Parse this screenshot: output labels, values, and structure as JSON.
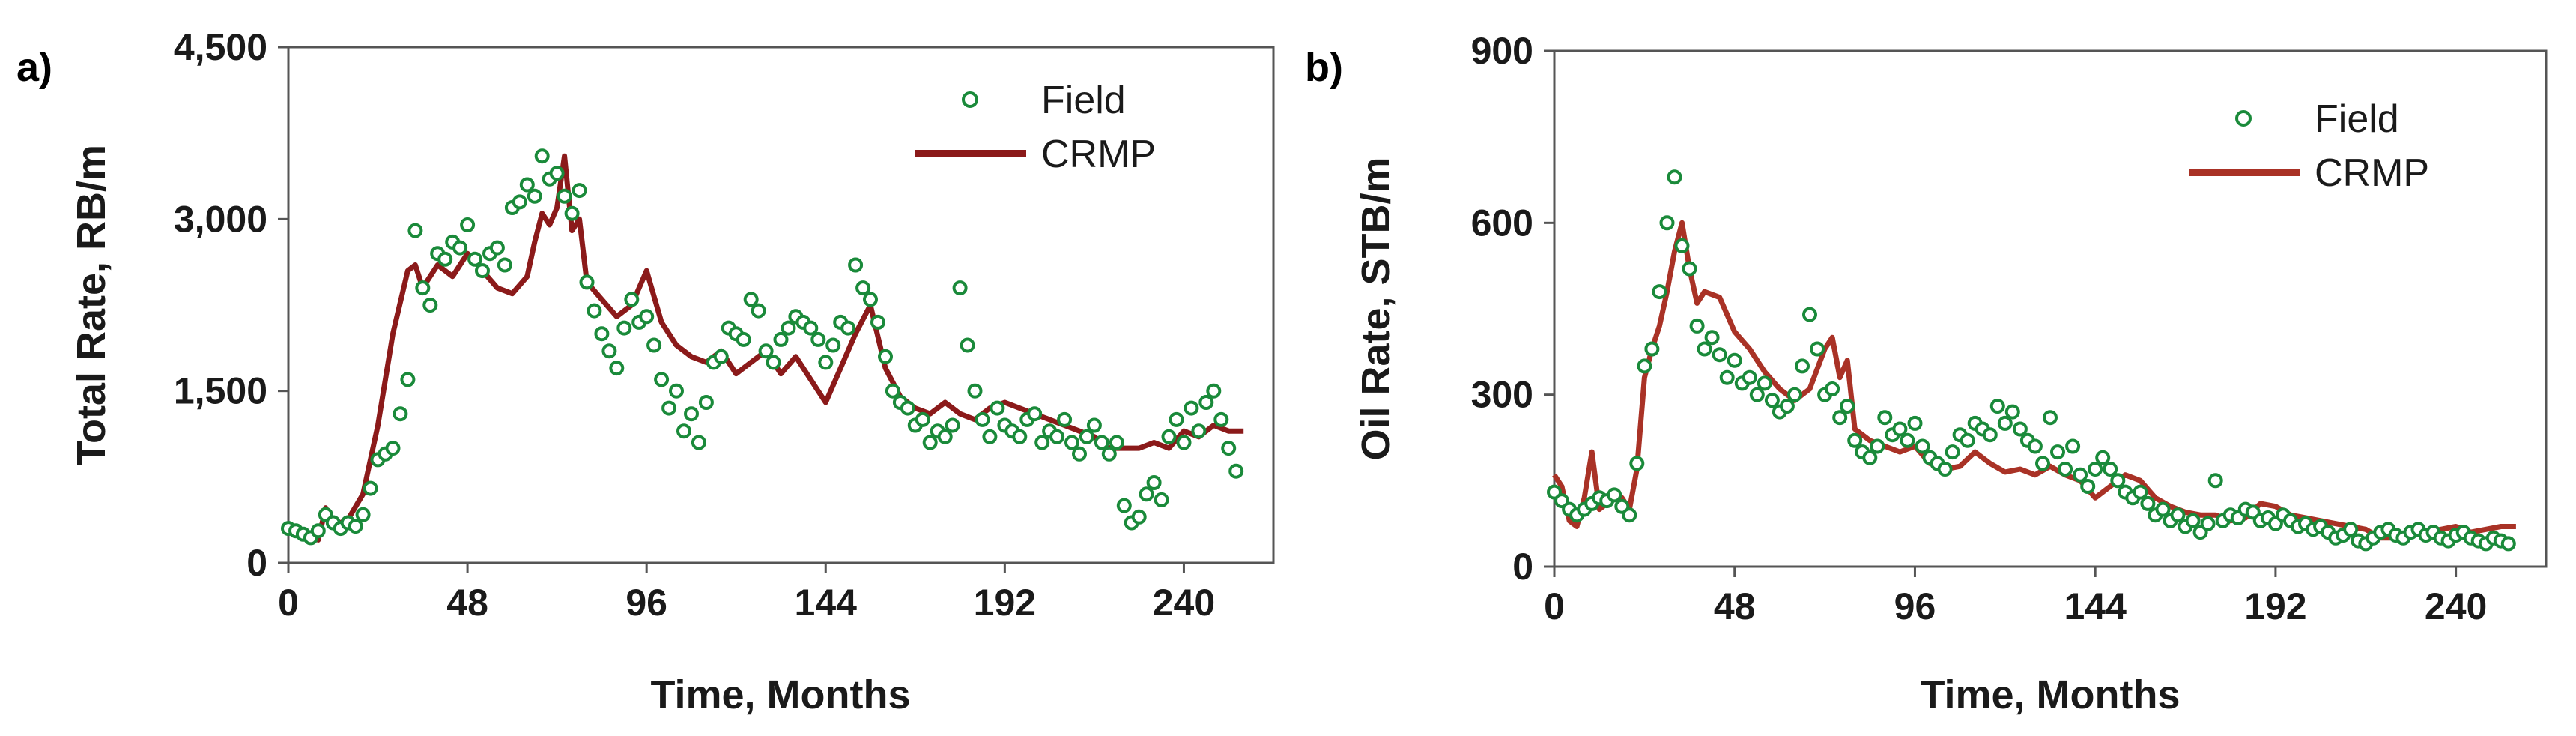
{
  "figure": {
    "description_note": ""
  },
  "chart_data": [
    {
      "panel_label": "a)",
      "type": "scatter+line",
      "xlabel": "Time, Months",
      "ylabel": "Total Rate, RB/m",
      "xlim": [
        0,
        264
      ],
      "ylim": [
        0,
        4500
      ],
      "xticks": [
        0,
        48,
        96,
        144,
        192,
        240
      ],
      "xtick_labels": [
        "0",
        "48",
        "96",
        "144",
        "192",
        "240"
      ],
      "yticks": [
        0,
        1500,
        3000,
        4500
      ],
      "ytick_labels": [
        "0",
        "1,500",
        "3,000",
        "4,500"
      ],
      "legend": {
        "position": "top-right",
        "entries": [
          {
            "label": "Field",
            "marker": "circle"
          },
          {
            "label": "CRMP",
            "marker": "line"
          }
        ]
      },
      "series": [
        {
          "name": "CRMP",
          "kind": "line",
          "color": "#8b1a1a",
          "x": [
            0,
            4,
            8,
            10,
            12,
            16,
            20,
            24,
            28,
            32,
            34,
            36,
            40,
            44,
            48,
            52,
            56,
            60,
            64,
            66,
            68,
            70,
            72,
            74,
            76,
            78,
            80,
            84,
            88,
            92,
            96,
            100,
            104,
            108,
            112,
            116,
            120,
            124,
            128,
            132,
            136,
            140,
            144,
            148,
            152,
            156,
            160,
            164,
            168,
            172,
            176,
            180,
            184,
            188,
            192,
            196,
            200,
            204,
            208,
            212,
            216,
            220,
            224,
            228,
            232,
            236,
            240,
            244,
            248,
            252,
            256
          ],
          "y": [
            300,
            250,
            200,
            480,
            320,
            380,
            600,
            1200,
            2000,
            2550,
            2600,
            2400,
            2600,
            2500,
            2700,
            2550,
            2400,
            2350,
            2500,
            2800,
            3050,
            2950,
            3100,
            3550,
            2900,
            3000,
            2450,
            2300,
            2150,
            2250,
            2550,
            2100,
            1900,
            1800,
            1750,
            1850,
            1650,
            1750,
            1850,
            1650,
            1800,
            1600,
            1400,
            1700,
            2000,
            2250,
            1700,
            1450,
            1350,
            1300,
            1400,
            1300,
            1250,
            1350,
            1400,
            1350,
            1300,
            1250,
            1200,
            1150,
            1100,
            1000,
            1000,
            1000,
            1050,
            1000,
            1150,
            1100,
            1200,
            1150,
            1150
          ]
        },
        {
          "name": "Field",
          "kind": "scatter",
          "color": "#1a8a3a",
          "x": [
            0,
            2,
            4,
            6,
            8,
            10,
            12,
            14,
            16,
            18,
            20,
            22,
            24,
            26,
            28,
            30,
            32,
            34,
            36,
            38,
            40,
            42,
            44,
            46,
            48,
            50,
            52,
            54,
            56,
            58,
            60,
            62,
            64,
            66,
            68,
            70,
            72,
            74,
            76,
            78,
            80,
            82,
            84,
            86,
            88,
            90,
            92,
            94,
            96,
            98,
            100,
            102,
            104,
            106,
            108,
            110,
            112,
            114,
            116,
            118,
            120,
            122,
            124,
            126,
            128,
            130,
            132,
            134,
            136,
            138,
            140,
            142,
            144,
            146,
            148,
            150,
            152,
            154,
            156,
            158,
            160,
            162,
            164,
            166,
            168,
            170,
            172,
            174,
            176,
            178,
            180,
            182,
            184,
            186,
            188,
            190,
            192,
            194,
            196,
            198,
            200,
            202,
            204,
            206,
            208,
            210,
            212,
            214,
            216,
            218,
            220,
            222,
            224,
            226,
            228,
            230,
            232,
            234,
            236,
            238,
            240,
            242,
            244,
            246,
            248,
            250,
            252,
            254
          ],
          "y": [
            300,
            280,
            250,
            220,
            280,
            420,
            350,
            300,
            350,
            320,
            420,
            650,
            900,
            950,
            1000,
            1300,
            1600,
            2900,
            2400,
            2250,
            2700,
            2650,
            2800,
            2750,
            2950,
            2650,
            2550,
            2700,
            2750,
            2600,
            3100,
            3150,
            3300,
            3200,
            3550,
            3350,
            3400,
            3200,
            3050,
            3250,
            2450,
            2200,
            2000,
            1850,
            1700,
            2050,
            2300,
            2100,
            2150,
            1900,
            1600,
            1350,
            1500,
            1150,
            1300,
            1050,
            1400,
            1750,
            1800,
            2050,
            2000,
            1950,
            2300,
            2200,
            1850,
            1750,
            1950,
            2050,
            2150,
            2100,
            2050,
            1950,
            1750,
            1900,
            2100,
            2050,
            2600,
            2400,
            2300,
            2100,
            1800,
            1500,
            1400,
            1350,
            1200,
            1250,
            1050,
            1150,
            1100,
            1200,
            2400,
            1900,
            1500,
            1250,
            1100,
            1350,
            1200,
            1150,
            1100,
            1250,
            1300,
            1050,
            1150,
            1100,
            1250,
            1050,
            950,
            1100,
            1200,
            1050,
            950,
            1050,
            500,
            350,
            400,
            600,
            700,
            550,
            1100,
            1250,
            1050,
            1350,
            1150,
            1400,
            1500,
            1250,
            1000,
            800
          ]
        }
      ]
    },
    {
      "panel_label": "b)",
      "type": "scatter+line",
      "xlabel": "Time, Months",
      "ylabel": "Oil Rate, STB/m",
      "xlim": [
        0,
        264
      ],
      "ylim": [
        0,
        900
      ],
      "xticks": [
        0,
        48,
        96,
        144,
        192,
        240
      ],
      "xtick_labels": [
        "0",
        "48",
        "96",
        "144",
        "192",
        "240"
      ],
      "yticks": [
        0,
        300,
        600,
        900
      ],
      "ytick_labels": [
        "0",
        "300",
        "600",
        "900"
      ],
      "legend": {
        "position": "top-right",
        "entries": [
          {
            "label": "Field",
            "marker": "circle"
          },
          {
            "label": "CRMP",
            "marker": "line"
          }
        ]
      },
      "series": [
        {
          "name": "CRMP",
          "kind": "line",
          "color": "#a93226",
          "x": [
            0,
            2,
            4,
            6,
            8,
            10,
            12,
            14,
            16,
            18,
            20,
            22,
            24,
            26,
            28,
            30,
            32,
            34,
            36,
            38,
            40,
            44,
            48,
            52,
            56,
            60,
            64,
            68,
            72,
            74,
            76,
            78,
            80,
            84,
            88,
            92,
            96,
            100,
            104,
            108,
            112,
            116,
            120,
            124,
            128,
            132,
            136,
            140,
            144,
            148,
            152,
            156,
            160,
            164,
            168,
            172,
            176,
            180,
            184,
            188,
            192,
            196,
            200,
            204,
            208,
            212,
            216,
            220,
            224,
            228,
            232,
            236,
            240,
            244,
            248,
            252,
            256
          ],
          "y": [
            160,
            140,
            80,
            70,
            120,
            200,
            100,
            110,
            130,
            120,
            100,
            170,
            330,
            380,
            420,
            480,
            550,
            600,
            520,
            460,
            480,
            470,
            410,
            380,
            340,
            310,
            290,
            310,
            380,
            400,
            330,
            360,
            240,
            220,
            210,
            200,
            210,
            180,
            170,
            175,
            200,
            180,
            165,
            170,
            160,
            175,
            160,
            150,
            120,
            140,
            160,
            150,
            120,
            105,
            95,
            90,
            90,
            80,
            85,
            110,
            105,
            90,
            85,
            80,
            75,
            70,
            65,
            50,
            50,
            55,
            60,
            65,
            70,
            60,
            65,
            70,
            70
          ]
        },
        {
          "name": "Field",
          "kind": "scatter",
          "color": "#1a8a3a",
          "x": [
            0,
            2,
            4,
            6,
            8,
            10,
            12,
            14,
            16,
            18,
            20,
            22,
            24,
            26,
            28,
            30,
            32,
            34,
            36,
            38,
            40,
            42,
            44,
            46,
            48,
            50,
            52,
            54,
            56,
            58,
            60,
            62,
            64,
            66,
            68,
            70,
            72,
            74,
            76,
            78,
            80,
            82,
            84,
            86,
            88,
            90,
            92,
            94,
            96,
            98,
            100,
            102,
            104,
            106,
            108,
            110,
            112,
            114,
            116,
            118,
            120,
            122,
            124,
            126,
            128,
            130,
            132,
            134,
            136,
            138,
            140,
            142,
            144,
            146,
            148,
            150,
            152,
            154,
            156,
            158,
            160,
            162,
            164,
            166,
            168,
            170,
            172,
            174,
            176,
            178,
            180,
            182,
            184,
            186,
            188,
            190,
            192,
            194,
            196,
            198,
            200,
            202,
            204,
            206,
            208,
            210,
            212,
            214,
            216,
            218,
            220,
            222,
            224,
            226,
            228,
            230,
            232,
            234,
            236,
            238,
            240,
            242,
            244,
            246,
            248,
            250,
            252,
            254
          ],
          "y": [
            130,
            115,
            100,
            90,
            100,
            110,
            120,
            115,
            125,
            105,
            90,
            180,
            350,
            380,
            480,
            600,
            680,
            560,
            520,
            420,
            380,
            400,
            370,
            330,
            360,
            320,
            330,
            300,
            320,
            290,
            270,
            280,
            300,
            350,
            440,
            380,
            300,
            310,
            260,
            280,
            220,
            200,
            190,
            210,
            260,
            230,
            240,
            220,
            250,
            210,
            190,
            180,
            170,
            200,
            230,
            220,
            250,
            240,
            230,
            280,
            250,
            270,
            240,
            220,
            210,
            180,
            260,
            200,
            170,
            210,
            160,
            140,
            170,
            190,
            170,
            150,
            130,
            120,
            130,
            110,
            90,
            100,
            80,
            90,
            70,
            80,
            60,
            75,
            150,
            80,
            90,
            85,
            100,
            95,
            80,
            85,
            75,
            90,
            80,
            70,
            75,
            65,
            70,
            60,
            50,
            55,
            65,
            45,
            40,
            50,
            60,
            65,
            55,
            50,
            60,
            65,
            55,
            60,
            50,
            45,
            55,
            60,
            50,
            45,
            40,
            50,
            45,
            40
          ]
        }
      ]
    }
  ]
}
